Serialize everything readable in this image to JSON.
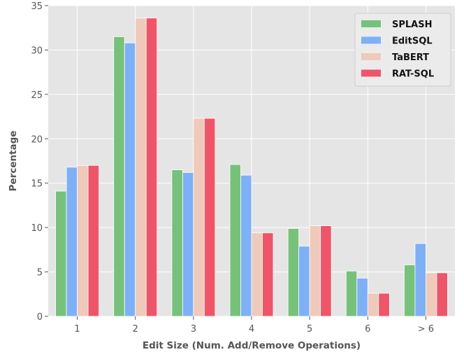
{
  "chart_data": {
    "type": "bar",
    "categories": [
      "1",
      "2",
      "3",
      "4",
      "5",
      "6",
      "> 6"
    ],
    "series": [
      {
        "name": "SPLASH",
        "color": "#77c27b",
        "values": [
          14.1,
          31.5,
          16.5,
          17.1,
          9.9,
          5.1,
          5.8
        ]
      },
      {
        "name": "EditSQL",
        "color": "#7eb0f7",
        "values": [
          16.8,
          30.8,
          16.2,
          15.9,
          7.9,
          4.3,
          8.2
        ]
      },
      {
        "name": "TaBERT",
        "color": "#efc9ba",
        "values": [
          17.0,
          33.6,
          22.3,
          9.4,
          10.2,
          2.6,
          4.9
        ]
      },
      {
        "name": "RAT-SQL",
        "color": "#ef5568",
        "values": [
          17.0,
          33.6,
          22.3,
          9.4,
          10.2,
          2.6,
          4.9
        ]
      }
    ],
    "xlabel": "Edit Size (Num. Add/Remove Operations)",
    "ylabel": "Percentage",
    "ylim": [
      0,
      35
    ],
    "yticks": [
      0,
      5,
      10,
      15,
      20,
      25,
      30,
      35
    ],
    "grid": true,
    "legend_position": "top-right",
    "background_color": "#e5e5e5"
  }
}
